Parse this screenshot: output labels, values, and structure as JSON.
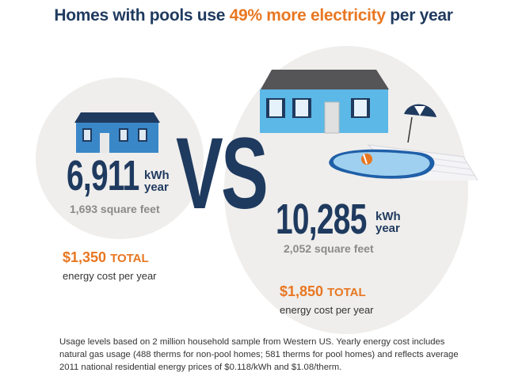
{
  "title": {
    "prefix": "Homes with pools use ",
    "highlight": "49% more electricity",
    "suffix": " per year"
  },
  "vs_label": "VS",
  "non_pool": {
    "kwh": "6,911",
    "unit_top": "kWh",
    "unit_bottom": "year",
    "sqft": "1,693 square feet",
    "cost": "$1,350",
    "cost_total": "TOTAL",
    "cost_caption": "energy cost per year",
    "icon": "house-icon"
  },
  "pool": {
    "kwh": "10,285",
    "unit_top": "kWh",
    "unit_bottom": "year",
    "sqft": "2,052 square feet",
    "cost": "$1,850",
    "cost_total": "TOTAL",
    "cost_caption": "energy cost per year",
    "icon": "house-with-pool-icon"
  },
  "footnote": "Usage levels based on 2 million household sample from Western US. Yearly energy cost includes natural gas usage (488 therms for non-pool homes; 581 therms for pool homes) and reflects average 2011 national residential energy prices of $0.118/kWh and $1.08/therm.",
  "colors": {
    "navy": "#1f3a5f",
    "orange": "#e87722",
    "circle": "#efeeec",
    "house_blue": "#3a87c8",
    "house_light": "#5cb8e6"
  }
}
